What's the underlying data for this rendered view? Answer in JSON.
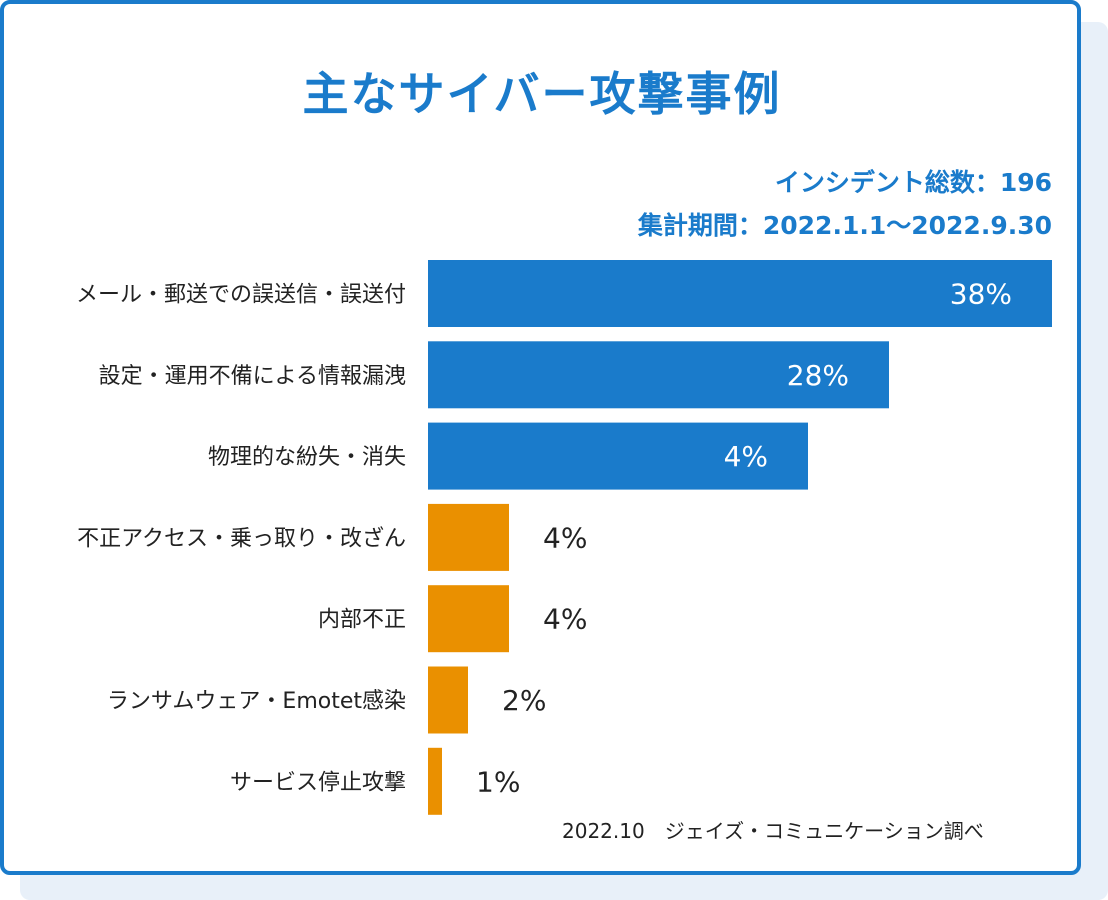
{
  "title": "主なサイバー攻撃事例",
  "incidents_label": "インシデント総数：196",
  "period_label": "集計期間：2022.1.1～2022.9.30",
  "source": "2022.10　ジェイズ・コミュニケーション調べ",
  "colors": {
    "accent": "#1a7bcb",
    "orange": "#ea9000",
    "text": "#222222",
    "white": "#ffffff"
  },
  "chart_data": {
    "type": "bar",
    "orientation": "horizontal",
    "title": "主なサイバー攻撃事例",
    "xlabel": "",
    "ylabel": "",
    "xlim": [
      0,
      38
    ],
    "categories": [
      "メール・郵送での誤送信・誤送付",
      "設定・運用不備による情報漏洩",
      "物理的な紛失・消失",
      "不正アクセス・乗っ取り・改ざん",
      "内部不正",
      "ランサムウェア・Emotet感染",
      "サービス停止攻撃"
    ],
    "values": [
      38,
      28,
      4,
      4,
      4,
      2,
      1
    ],
    "labels": [
      "38%",
      "28%",
      "4%",
      "4%",
      "4%",
      "2%",
      "1%"
    ],
    "bar_colors": [
      "#1a7bcb",
      "#1a7bcb",
      "#1a7bcb",
      "#ea9000",
      "#ea9000",
      "#ea9000",
      "#ea9000"
    ]
  }
}
